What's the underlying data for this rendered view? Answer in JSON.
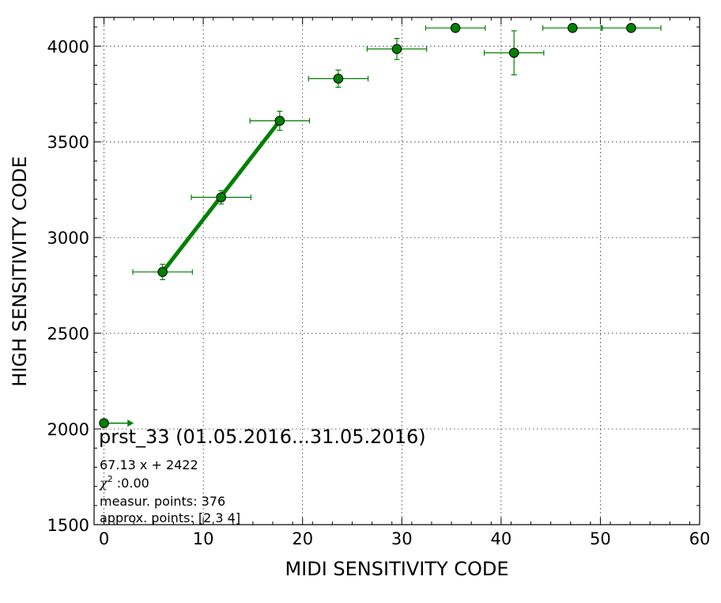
{
  "chart_data": {
    "type": "scatter",
    "xlabel": "MIDI SENSITIVITY CODE",
    "ylabel": "HIGH SENSITIVITY CODE",
    "xlim": [
      -1,
      60
    ],
    "ylim": [
      1500,
      4150
    ],
    "xticks": [
      0,
      10,
      20,
      30,
      40,
      50,
      60
    ],
    "yticks": [
      1500,
      2000,
      2500,
      3000,
      3500,
      4000
    ],
    "grid": true,
    "series_color": "#008000",
    "marker_edge_color": "#000000",
    "points": [
      {
        "x": 0,
        "y": 2030,
        "xerr": 0,
        "yerr": 0
      },
      {
        "x": 5.9,
        "y": 2820,
        "xerr": 3.0,
        "yerr": 40
      },
      {
        "x": 11.8,
        "y": 3210,
        "xerr": 3.0,
        "yerr": 35
      },
      {
        "x": 17.7,
        "y": 3610,
        "xerr": 3.0,
        "yerr": 50
      },
      {
        "x": 23.6,
        "y": 3830,
        "xerr": 3.0,
        "yerr": 45
      },
      {
        "x": 29.5,
        "y": 3985,
        "xerr": 3.0,
        "yerr": 55
      },
      {
        "x": 35.4,
        "y": 4095,
        "xerr": 3.0,
        "yerr": 0
      },
      {
        "x": 41.3,
        "y": 3965,
        "xerr": 3.0,
        "yerr": 115
      },
      {
        "x": 47.2,
        "y": 4095,
        "xerr": 3.0,
        "yerr": 0
      },
      {
        "x": 53.1,
        "y": 4095,
        "xerr": 3.0,
        "yerr": 0
      }
    ],
    "fit": {
      "slope": 67.13,
      "intercept": 2422,
      "x_from": 5.9,
      "x_to": 17.7
    },
    "arrow": {
      "x_from": 0,
      "x_to": 3.0,
      "y": 2030
    },
    "annotations": {
      "title": "prst_33 (01.05.2016...31.05.2016)",
      "equation": "67.13 x + 2422",
      "chi_symbol": "χ",
      "chi_sup": "2",
      "chi_value": " :0.00",
      "measured": "measur. points: 376",
      "approx": "approx. points: [2 3 4]"
    }
  }
}
